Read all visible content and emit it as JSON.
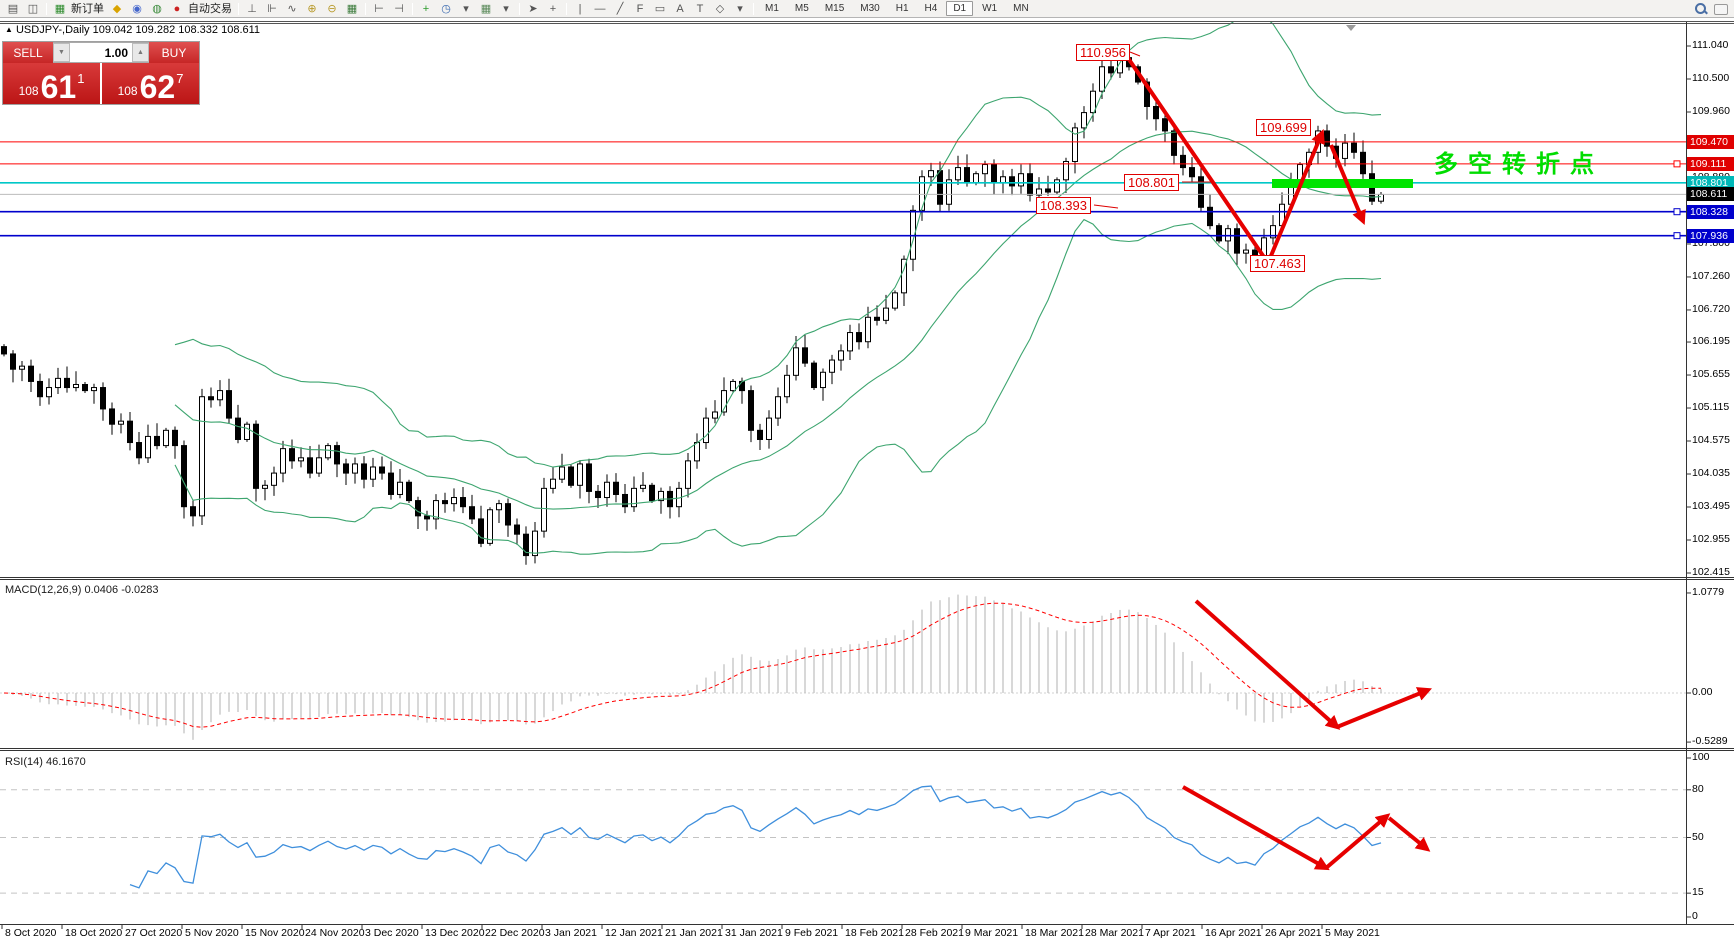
{
  "toolbar": {
    "icons": [
      {
        "t": "i",
        "name": "new-chart-icon",
        "g": "▤"
      },
      {
        "t": "i",
        "name": "chart-profiles-icon",
        "g": "◫"
      },
      {
        "t": "s"
      },
      {
        "t": "i",
        "name": "new-order-icon",
        "g": "▦",
        "c": "#2a8a2a"
      },
      {
        "t": "l",
        "name": "new-order-label",
        "label": "新订单"
      },
      {
        "t": "i",
        "name": "deposit-icon",
        "g": "◆",
        "c": "#d9a300"
      },
      {
        "t": "i",
        "name": "account-icon",
        "g": "◉",
        "c": "#4466cc"
      },
      {
        "t": "i",
        "name": "signals-icon",
        "g": "◍",
        "c": "#3a8a3a"
      },
      {
        "t": "i",
        "name": "autotrading-icon",
        "g": "●",
        "c": "#cc2222"
      },
      {
        "t": "l",
        "name": "autotrading-label",
        "label": "自动交易"
      },
      {
        "t": "s"
      },
      {
        "t": "i",
        "name": "bar-chart-icon",
        "g": "⊥"
      },
      {
        "t": "i",
        "name": "candlestick-chart-icon",
        "g": "⊩"
      },
      {
        "t": "i",
        "name": "line-chart-icon",
        "g": "∿"
      },
      {
        "t": "i",
        "name": "zoom-in-icon",
        "g": "⊕",
        "c": "#b89a2a"
      },
      {
        "t": "i",
        "name": "zoom-out-icon",
        "g": "⊖",
        "c": "#b89a2a"
      },
      {
        "t": "i",
        "name": "tile-windows-icon",
        "g": "▦",
        "c": "#3a7a3a"
      },
      {
        "t": "s"
      },
      {
        "t": "i",
        "name": "indicator-list-icon",
        "g": "⊢"
      },
      {
        "t": "i",
        "name": "period-axis-icon",
        "g": "⊣"
      },
      {
        "t": "s"
      },
      {
        "t": "i",
        "name": "add-indicator-icon",
        "g": "+",
        "c": "#2a9a2a"
      },
      {
        "t": "i",
        "name": "clock-icon",
        "g": "◷",
        "c": "#3a6ab0"
      },
      {
        "t": "i",
        "name": "caret-icon",
        "g": "▾"
      },
      {
        "t": "i",
        "name": "chart-template-icon",
        "g": "▦",
        "c": "#5a8a5a"
      },
      {
        "t": "i",
        "name": "caret-icon",
        "g": "▾"
      },
      {
        "t": "s"
      },
      {
        "t": "i",
        "name": "cursor-icon",
        "g": "➤"
      },
      {
        "t": "i",
        "name": "crosshair-icon",
        "g": "+"
      },
      {
        "t": "s"
      },
      {
        "t": "i",
        "name": "vertical-line-icon",
        "g": "|"
      },
      {
        "t": "i",
        "name": "horizontal-line-icon",
        "g": "—"
      },
      {
        "t": "i",
        "name": "trendline-icon",
        "g": "╱"
      },
      {
        "t": "i",
        "name": "fibonacci-icon",
        "g": "F"
      },
      {
        "t": "i",
        "name": "channel-icon",
        "g": "▭"
      },
      {
        "t": "i",
        "name": "text-icon",
        "g": "A"
      },
      {
        "t": "i",
        "name": "text-label-icon",
        "g": "T"
      },
      {
        "t": "i",
        "name": "arrows-object-icon",
        "g": "◇"
      },
      {
        "t": "i",
        "name": "caret-icon",
        "g": "▾"
      },
      {
        "t": "s"
      }
    ],
    "timeframes": [
      "M1",
      "M5",
      "M15",
      "M30",
      "H1",
      "H4",
      "D1",
      "W1",
      "MN"
    ],
    "active_timeframe": "D1",
    "notification_count": "1"
  },
  "symbol_bar": {
    "collapse_icon": "▲",
    "symbol": "USDJPY-,Daily",
    "open": "109.042",
    "high": "109.282",
    "low": "108.332",
    "close": "108.611"
  },
  "trade_panel": {
    "sell_label": "SELL",
    "buy_label": "BUY",
    "volume": "1.00",
    "sell_price_big": "61",
    "sell_price_small": "108",
    "sell_price_sup": "1",
    "buy_price_big": "62",
    "buy_price_small": "108",
    "buy_price_sup": "7"
  },
  "annotations": {
    "peak_label": "110.956",
    "rebound_label": "109.699",
    "mid_label": "108.801",
    "support_label": "108.393",
    "low_label": "107.463",
    "green_note": "多空转折点",
    "arrow_color": "#e60000",
    "zone_color": "#00e400"
  },
  "macd_panel": {
    "name": "MACD(12,26,9)",
    "value1": "0.0406",
    "value2": "-0.0283",
    "y_ticks": [
      {
        "text": "1.0779",
        "v": 1.0779
      },
      {
        "text": "0.00",
        "v": 0
      },
      {
        "text": "-0.5289",
        "v": -0.5289
      }
    ]
  },
  "rsi_panel": {
    "name": "RSI(14)",
    "value": "46.1670",
    "y_ticks": [
      {
        "text": "100",
        "v": 100
      },
      {
        "text": "80",
        "v": 80
      },
      {
        "text": "50",
        "v": 50
      },
      {
        "text": "15",
        "v": 15
      },
      {
        "text": "0",
        "v": 0
      }
    ],
    "dashed_levels": [
      80,
      50,
      15
    ]
  },
  "chart_data": {
    "type": "candlestick",
    "symbol": "USDJPY",
    "timeframe": "Daily",
    "title": "USDJPY-,Daily",
    "y_axis_ticks": [
      {
        "text": "111.040",
        "price": 111.04
      },
      {
        "text": "110.500",
        "price": 110.5
      },
      {
        "text": "109.960",
        "price": 109.96
      },
      {
        "text": "109.420",
        "price": 109.42
      },
      {
        "text": "108.880",
        "price": 108.88
      },
      {
        "text": "108.340",
        "price": 108.34
      },
      {
        "text": "107.800",
        "price": 107.8
      },
      {
        "text": "107.260",
        "price": 107.26
      },
      {
        "text": "106.720",
        "price": 106.72
      },
      {
        "text": "106.195",
        "price": 106.195
      },
      {
        "text": "105.655",
        "price": 105.655
      },
      {
        "text": "105.115",
        "price": 105.115
      },
      {
        "text": "104.575",
        "price": 104.575
      },
      {
        "text": "104.035",
        "price": 104.035
      },
      {
        "text": "103.495",
        "price": 103.495
      },
      {
        "text": "102.955",
        "price": 102.955
      },
      {
        "text": "102.415",
        "price": 102.415
      }
    ],
    "y_axis_badges": [
      {
        "text": "109.470",
        "price": 109.47,
        "bg": "#e00000"
      },
      {
        "text": "109.111",
        "price": 109.111,
        "bg": "#e00000"
      },
      {
        "text": "108.801",
        "price": 108.801,
        "bg": "#00b8b8"
      },
      {
        "text": "108.611",
        "price": 108.611,
        "bg": "#000000"
      },
      {
        "text": "108.328",
        "price": 108.328,
        "bg": "#0000cc"
      },
      {
        "text": "107.936",
        "price": 107.936,
        "bg": "#0000cc"
      }
    ],
    "horizontal_lines": [
      {
        "price": 109.47,
        "color": "#ff0000",
        "w": 1
      },
      {
        "price": 109.111,
        "color": "#ff0000",
        "w": 1,
        "handle": true
      },
      {
        "price": 108.801,
        "color": "#00c8c8",
        "w": 1.6
      },
      {
        "price": 108.611,
        "color": "#bbbbbb",
        "w": 1
      },
      {
        "price": 108.328,
        "color": "#0000cc",
        "w": 1.6,
        "handle": true
      },
      {
        "price": 107.936,
        "color": "#0000cc",
        "w": 1.6,
        "handle": true
      }
    ],
    "x_axis_dates": [
      "8 Oct 2020",
      "18 Oct 2020",
      "27 Oct 2020",
      "5 Nov 2020",
      "15 Nov 2020",
      "24 Nov 2020",
      "3 Dec 2020",
      "13 Dec 2020",
      "22 Dec 2020",
      "3 Jan 2021",
      "12 Jan 2021",
      "21 Jan 2021",
      "31 Jan 2021",
      "9 Feb 2021",
      "18 Feb 2021",
      "28 Feb 2021",
      "9 Mar 2021",
      "18 Mar 2021",
      "28 Mar 2021",
      "7 Apr 2021",
      "16 Apr 2021",
      "26 Apr 2021",
      "5 May 2021"
    ],
    "closes": [
      106.0,
      105.75,
      105.8,
      105.55,
      105.3,
      105.45,
      105.6,
      105.45,
      105.5,
      105.4,
      105.45,
      105.1,
      104.85,
      104.9,
      104.55,
      104.3,
      104.65,
      104.5,
      104.75,
      104.5,
      103.5,
      103.35,
      105.3,
      105.25,
      105.4,
      104.95,
      104.6,
      104.85,
      103.8,
      103.85,
      104.05,
      104.45,
      104.25,
      104.3,
      104.05,
      104.3,
      104.5,
      104.2,
      104.05,
      104.2,
      103.95,
      104.15,
      104.05,
      103.7,
      103.9,
      103.6,
      103.35,
      103.3,
      103.6,
      103.55,
      103.65,
      103.5,
      103.3,
      102.9,
      103.45,
      103.55,
      103.2,
      103.05,
      102.7,
      103.1,
      103.8,
      103.95,
      104.15,
      103.85,
      104.2,
      103.75,
      103.65,
      103.9,
      103.7,
      103.5,
      103.8,
      103.85,
      103.6,
      103.75,
      103.5,
      103.8,
      104.25,
      104.55,
      104.95,
      105.05,
      105.4,
      105.55,
      105.4,
      104.75,
      104.6,
      104.95,
      105.3,
      105.65,
      106.1,
      105.85,
      105.45,
      105.7,
      105.9,
      106.05,
      106.35,
      106.2,
      106.6,
      106.55,
      106.75,
      107.0,
      107.55,
      108.35,
      108.9,
      109.0,
      108.45,
      108.85,
      109.05,
      108.8,
      108.95,
      109.1,
      108.8,
      108.9,
      108.75,
      108.95,
      108.6,
      108.7,
      108.65,
      108.85,
      109.15,
      109.7,
      109.95,
      110.3,
      110.7,
      110.6,
      110.85,
      110.7,
      110.45,
      110.05,
      109.85,
      109.65,
      109.25,
      109.05,
      108.9,
      108.4,
      108.1,
      107.85,
      108.05,
      107.65,
      107.7,
      107.5,
      107.9,
      108.1,
      108.45,
      108.75,
      109.1,
      109.3,
      109.65,
      109.4,
      109.2,
      109.45,
      109.3,
      108.95,
      108.5,
      108.61
    ],
    "bollinger": {
      "period": 20,
      "deviation": 2,
      "color": "#3da56f"
    },
    "macd": {
      "fast": 12,
      "slow": 26,
      "signal_period": 9,
      "histogram_color": "#c4c4c4",
      "signal_color": "#ff0000"
    },
    "rsi": {
      "period": 14,
      "color": "#3f8fdc"
    }
  }
}
